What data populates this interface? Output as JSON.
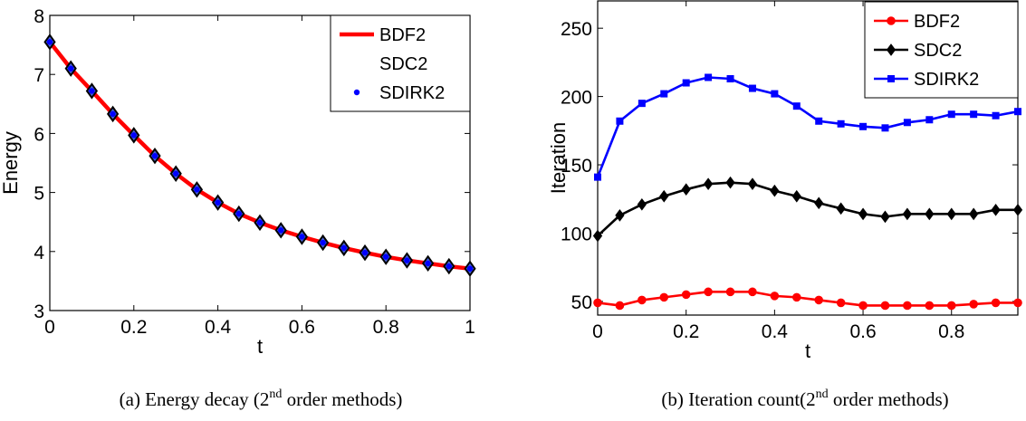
{
  "chart_data": [
    {
      "type": "line",
      "caption": {
        "prefix": "(a) Energy decay (2",
        "sup": "nd",
        "suffix": " order methods)"
      },
      "xlabel": "t",
      "ylabel": "Energy",
      "xlim": [
        0,
        1
      ],
      "ylim": [
        3,
        8
      ],
      "xticks": [
        0,
        0.2,
        0.4,
        0.6,
        0.8,
        1
      ],
      "xtick_labels": [
        "0",
        "0.2",
        "0.4",
        "0.6",
        "0.8",
        "1"
      ],
      "yticks": [
        3,
        4,
        5,
        6,
        7,
        8
      ],
      "ytick_labels": [
        "3",
        "4",
        "5",
        "6",
        "7",
        "8"
      ],
      "legend_position": "top-right",
      "grid": false,
      "x": [
        0,
        0.05,
        0.1,
        0.15,
        0.2,
        0.25,
        0.3,
        0.35,
        0.4,
        0.45,
        0.5,
        0.55,
        0.6,
        0.65,
        0.7,
        0.75,
        0.8,
        0.85,
        0.9,
        0.95,
        1.0
      ],
      "series": [
        {
          "name": "BDF2",
          "color": "#ff0000",
          "style": "line",
          "marker": "none",
          "values": [
            7.55,
            7.1,
            6.72,
            6.33,
            5.97,
            5.62,
            5.32,
            5.05,
            4.83,
            4.64,
            4.49,
            4.36,
            4.25,
            4.15,
            4.06,
            3.98,
            3.91,
            3.85,
            3.8,
            3.75,
            3.71
          ]
        },
        {
          "name": "SDC2",
          "color": "#000000",
          "style": "marker",
          "marker": "diamond",
          "values": [
            7.55,
            7.1,
            6.72,
            6.33,
            5.97,
            5.62,
            5.32,
            5.05,
            4.83,
            4.64,
            4.49,
            4.36,
            4.25,
            4.15,
            4.06,
            3.98,
            3.91,
            3.85,
            3.8,
            3.75,
            3.71
          ]
        },
        {
          "name": "SDIRK2",
          "color": "#0000ff",
          "style": "marker",
          "marker": "dot",
          "values": [
            7.55,
            7.1,
            6.72,
            6.33,
            5.97,
            5.62,
            5.32,
            5.05,
            4.83,
            4.64,
            4.49,
            4.36,
            4.25,
            4.15,
            4.06,
            3.98,
            3.91,
            3.85,
            3.8,
            3.75,
            3.71
          ]
        }
      ]
    },
    {
      "type": "line",
      "caption": {
        "prefix": "(b) Iteration count(2",
        "sup": "nd",
        "suffix": " order methods)"
      },
      "xlabel": "t",
      "ylabel": "Iteration",
      "xlim": [
        0,
        0.95
      ],
      "ylim": [
        40,
        270
      ],
      "xticks": [
        0,
        0.2,
        0.4,
        0.6,
        0.8
      ],
      "xtick_labels": [
        "0",
        "0.2",
        "0.4",
        "0.6",
        "0.8"
      ],
      "yticks": [
        50,
        100,
        150,
        200,
        250
      ],
      "ytick_labels": [
        "50",
        "100",
        "150",
        "200",
        "250"
      ],
      "legend_position": "top-right",
      "grid": false,
      "x": [
        0,
        0.05,
        0.1,
        0.15,
        0.2,
        0.25,
        0.3,
        0.35,
        0.4,
        0.45,
        0.5,
        0.55,
        0.6,
        0.65,
        0.7,
        0.75,
        0.8,
        0.85,
        0.9,
        0.95
      ],
      "series": [
        {
          "name": "BDF2",
          "color": "#ff0000",
          "style": "line+marker",
          "marker": "circle",
          "values": [
            49,
            47,
            51,
            53,
            55,
            57,
            57,
            57,
            54,
            53,
            51,
            49,
            47,
            47,
            47,
            47,
            47,
            48,
            49,
            49
          ]
        },
        {
          "name": "SDC2",
          "color": "#000000",
          "style": "line+marker",
          "marker": "diamond",
          "values": [
            98,
            113,
            121,
            127,
            132,
            136,
            137,
            136,
            131,
            127,
            122,
            118,
            114,
            112,
            114,
            114,
            114,
            114,
            117,
            117
          ]
        },
        {
          "name": "SDIRK2",
          "color": "#0000ff",
          "style": "line+marker",
          "marker": "square",
          "values": [
            141,
            182,
            195,
            202,
            210,
            214,
            213,
            206,
            202,
            193,
            182,
            180,
            178,
            177,
            181,
            183,
            187,
            187,
            186,
            189
          ]
        }
      ]
    }
  ]
}
